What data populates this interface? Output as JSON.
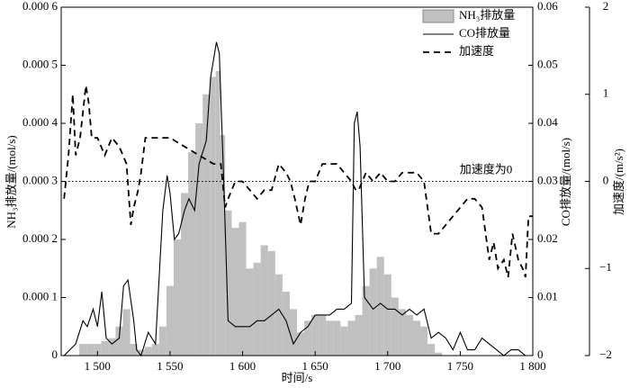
{
  "chart_data": {
    "type": "combo",
    "xlabel": "时间/s",
    "ylabel": "NH₃排放量/(mol/s)",
    "y2label": "CO排放量/(mol/s)",
    "y3label": "加速度/(m/s²)",
    "annotation": "加速度为0",
    "reference_line": 0,
    "legend": "upper right",
    "xlim": [
      1475,
      1800
    ],
    "xticks": [
      {
        "value": 1500,
        "label": "1 500"
      },
      {
        "value": 1550,
        "label": "1 550"
      },
      {
        "value": 1600,
        "label": "1 600"
      },
      {
        "value": 1650,
        "label": "1 650"
      },
      {
        "value": 1700,
        "label": "1 700"
      },
      {
        "value": 1750,
        "label": "1 750"
      },
      {
        "value": 1800,
        "label": "1 800"
      }
    ],
    "ylim": [
      0,
      0.0006
    ],
    "yticks": [
      0,
      {
        "value": 0.0001,
        "label": "0.000 1"
      },
      {
        "value": 0.0002,
        "label": "0.000 2"
      },
      {
        "value": 0.0003,
        "label": "0.000 3"
      },
      {
        "value": 0.0004,
        "label": "0.000 4"
      },
      {
        "value": 0.0005,
        "label": "0.000 5"
      },
      {
        "value": 0.0006,
        "label": "0.000 6"
      }
    ],
    "y2lim": [
      0,
      0.06
    ],
    "y2ticks": [
      0,
      0.01,
      0.02,
      0.03,
      0.04,
      0.05,
      0.06
    ],
    "y3lim": [
      -2,
      2
    ],
    "y3ticks": [
      {
        "value": -2,
        "label": "−2"
      },
      {
        "value": -1,
        "label": "−1"
      },
      0,
      1,
      2
    ],
    "series": [
      {
        "name": "NH₃排放量",
        "type": "area",
        "color": "#c0c0c0",
        "axis": "y",
        "x": [
          1480,
          1485,
          1490,
          1495,
          1500,
          1505,
          1510,
          1515,
          1520,
          1525,
          1530,
          1535,
          1540,
          1545,
          1550,
          1555,
          1560,
          1565,
          1570,
          1575,
          1580,
          1583,
          1586,
          1590,
          1595,
          1600,
          1605,
          1610,
          1615,
          1620,
          1625,
          1630,
          1635,
          1640,
          1645,
          1650,
          1655,
          1660,
          1665,
          1670,
          1675,
          1680,
          1685,
          1690,
          1695,
          1700,
          1705,
          1710,
          1715,
          1720,
          1725,
          1730,
          1735,
          1740
        ],
        "values": [
          0,
          0,
          2e-05,
          2e-05,
          2e-05,
          2.5e-05,
          3e-05,
          5e-05,
          8e-05,
          2e-05,
          1e-05,
          1.5e-05,
          2e-05,
          5e-05,
          0.00012,
          0.0002,
          0.00028,
          0.00035,
          0.0004,
          0.00045,
          0.00048,
          0.00049,
          0.00038,
          0.00025,
          0.00022,
          0.00023,
          0.00015,
          0.00016,
          0.00019,
          0.00018,
          0.00014,
          0.00011,
          8e-05,
          4e-05,
          6e-05,
          7e-05,
          7e-05,
          6e-05,
          6e-05,
          5e-05,
          6e-05,
          7e-05,
          0.00012,
          0.00015,
          0.00017,
          0.00014,
          0.0001,
          8e-05,
          7e-05,
          6e-05,
          5e-05,
          2e-05,
          5e-06,
          0
        ]
      },
      {
        "name": "CO排放量",
        "type": "line",
        "color": "#000000",
        "axis": "y2",
        "dashed": false,
        "x": [
          1477,
          1485,
          1490,
          1493,
          1497,
          1500,
          1503,
          1506,
          1510,
          1515,
          1518,
          1521,
          1525,
          1527,
          1530,
          1535,
          1540,
          1545,
          1548,
          1550,
          1553,
          1556,
          1560,
          1563,
          1567,
          1570,
          1575,
          1578,
          1582,
          1584,
          1587,
          1590,
          1595,
          1600,
          1605,
          1610,
          1615,
          1620,
          1625,
          1630,
          1635,
          1640,
          1645,
          1650,
          1655,
          1660,
          1665,
          1670,
          1675,
          1677,
          1679,
          1681,
          1684,
          1690,
          1695,
          1700,
          1705,
          1710,
          1715,
          1720,
          1725,
          1730,
          1735,
          1740,
          1745,
          1750,
          1755,
          1760,
          1765,
          1770,
          1775,
          1780,
          1785,
          1790,
          1795,
          1800
        ],
        "values": [
          0,
          0.002,
          0.006,
          0.005,
          0.008,
          0.005,
          0.011,
          0.003,
          0.002,
          0.003,
          0.012,
          0.013,
          0.006,
          0.001,
          0,
          0.004,
          0.002,
          0.025,
          0.031,
          0.028,
          0.02,
          0.021,
          0.025,
          0.027,
          0.025,
          0.033,
          0.037,
          0.048,
          0.054,
          0.052,
          0.03,
          0.006,
          0.005,
          0.005,
          0.005,
          0.006,
          0.006,
          0.007,
          0.008,
          0.006,
          0.002,
          0.004,
          0.005,
          0.007,
          0.007,
          0.007,
          0.008,
          0.008,
          0.009,
          0.04,
          0.042,
          0.036,
          0.01,
          0.008,
          0.009,
          0.008,
          0.008,
          0.007,
          0.008,
          0.007,
          0.008,
          0.003,
          0.004,
          0.003,
          0.001,
          0.004,
          0.001,
          0.001,
          0.003,
          0.002,
          0.001,
          0,
          0.001,
          0.001,
          0,
          0
        ]
      },
      {
        "name": "加速度",
        "type": "line",
        "color": "#000000",
        "axis": "y3",
        "dashed": true,
        "x": [
          1477,
          1480,
          1483,
          1485,
          1488,
          1490,
          1492,
          1494,
          1496,
          1500,
          1505,
          1510,
          1515,
          1520,
          1523,
          1525,
          1528,
          1530,
          1533,
          1540,
          1550,
          1560,
          1570,
          1580,
          1585,
          1588,
          1590,
          1595,
          1600,
          1605,
          1610,
          1615,
          1620,
          1625,
          1630,
          1633,
          1636,
          1640,
          1643,
          1646,
          1650,
          1655,
          1660,
          1665,
          1670,
          1675,
          1678,
          1680,
          1685,
          1690,
          1695,
          1700,
          1705,
          1710,
          1715,
          1720,
          1725,
          1730,
          1735,
          1740,
          1745,
          1750,
          1755,
          1760,
          1765,
          1770,
          1773,
          1776,
          1780,
          1783,
          1786,
          1790,
          1793,
          1795,
          1797,
          1800
        ],
        "values": [
          -0.2,
          0.3,
          1.0,
          0.3,
          0.5,
          0.8,
          1.1,
          0.9,
          0.5,
          0.5,
          0.3,
          0.5,
          0.4,
          0.2,
          -0.5,
          -0.3,
          -0.1,
          0.1,
          0.5,
          0.5,
          0.5,
          0.4,
          0.3,
          0.2,
          0.2,
          -0.3,
          -0.2,
          0,
          0,
          -0.1,
          -0.2,
          -0.1,
          -0.1,
          0.2,
          0.1,
          0,
          -0.2,
          -0.5,
          -0.2,
          0,
          0,
          0.2,
          0.2,
          0.2,
          0.1,
          0,
          -0.1,
          -0.1,
          0.1,
          0,
          0.1,
          0,
          0,
          0.1,
          0.1,
          0.1,
          0,
          -0.6,
          -0.6,
          -0.5,
          -0.4,
          -0.3,
          -0.2,
          -0.2,
          -0.3,
          -0.9,
          -0.7,
          -1.0,
          -0.9,
          -1.1,
          -0.6,
          -0.9,
          -1.0,
          -1.1,
          -0.4,
          -0.4
        ]
      }
    ]
  }
}
